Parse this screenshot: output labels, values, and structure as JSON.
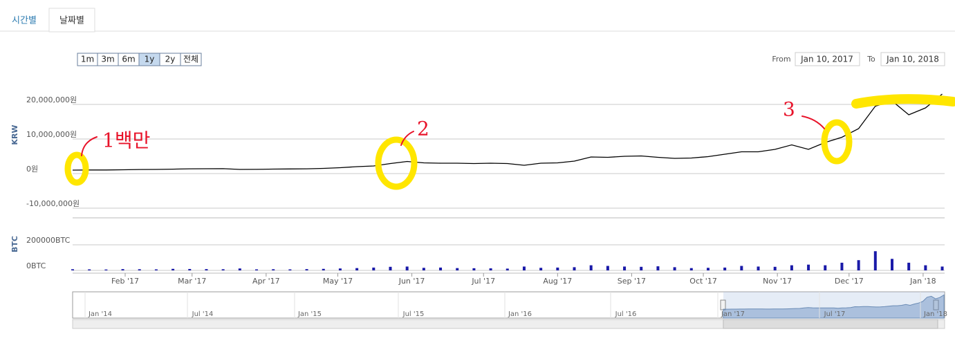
{
  "tabs": [
    "시간별",
    "날짜별"
  ],
  "range_buttons": [
    "1m",
    "3m",
    "6m",
    "1y",
    "2y",
    "전체"
  ],
  "selected_range": "1y",
  "date_range": {
    "from_label": "From",
    "from": "Jan 10, 2017",
    "to_label": "To",
    "to": "Jan 10, 2018"
  },
  "annotations": [
    "1백만",
    "2",
    "3"
  ],
  "navigator": {
    "labels": [
      "Jan '14",
      "Jul '14",
      "Jan '15",
      "Jul '15",
      "Jan '16",
      "Jul '16",
      "Jan '17",
      "Jul '17",
      "Jan '18"
    ]
  },
  "chart_data": [
    {
      "type": "line",
      "y_axis_title": "KRW",
      "color": "#000000",
      "grid": true,
      "xlim": [
        "2017-01-10",
        "2018-01-10"
      ],
      "x": [
        "2017-01-10",
        "2017-01-17",
        "2017-01-24",
        "2017-01-31",
        "2017-02-07",
        "2017-02-14",
        "2017-02-21",
        "2017-02-28",
        "2017-03-07",
        "2017-03-14",
        "2017-03-21",
        "2017-03-28",
        "2017-04-04",
        "2017-04-11",
        "2017-04-18",
        "2017-04-25",
        "2017-05-02",
        "2017-05-09",
        "2017-05-16",
        "2017-05-23",
        "2017-05-30",
        "2017-06-06",
        "2017-06-13",
        "2017-06-20",
        "2017-06-27",
        "2017-07-04",
        "2017-07-11",
        "2017-07-18",
        "2017-07-25",
        "2017-08-01",
        "2017-08-08",
        "2017-08-15",
        "2017-08-22",
        "2017-08-29",
        "2017-09-05",
        "2017-09-12",
        "2017-09-19",
        "2017-09-26",
        "2017-10-03",
        "2017-10-10",
        "2017-10-17",
        "2017-10-24",
        "2017-10-31",
        "2017-11-07",
        "2017-11-14",
        "2017-11-21",
        "2017-11-28",
        "2017-12-05",
        "2017-12-12",
        "2017-12-19",
        "2017-12-26",
        "2018-01-02",
        "2018-01-09"
      ],
      "values": [
        1000000,
        1030000,
        1050000,
        1100000,
        1180000,
        1200000,
        1280000,
        1370000,
        1400000,
        1420000,
        1200000,
        1210000,
        1300000,
        1350000,
        1380000,
        1500000,
        1700000,
        2000000,
        2200000,
        2900000,
        3500000,
        3100000,
        3000000,
        3000000,
        2900000,
        3000000,
        2900000,
        2400000,
        3000000,
        3100000,
        3600000,
        4800000,
        4700000,
        5000000,
        5100000,
        4700000,
        4400000,
        4500000,
        4900000,
        5600000,
        6300000,
        6300000,
        7000000,
        8300000,
        7000000,
        9000000,
        10500000,
        13000000,
        19500000,
        21000000,
        17000000,
        19000000,
        23000000
      ],
      "ylim": [
        -12800000,
        27800000
      ],
      "yticks": [
        {
          "value": -10000000,
          "label": "-10,000,000원"
        },
        {
          "value": 0,
          "label": "0원"
        },
        {
          "value": 10000000,
          "label": "10,000,000원"
        },
        {
          "value": 20000000,
          "label": "20,000,000원"
        }
      ]
    },
    {
      "type": "bar",
      "y_axis_title": "BTC",
      "color": "#1a1aa8",
      "xlim": [
        "2017-01-10",
        "2018-01-10"
      ],
      "x": [
        "2017-01-10",
        "2017-01-17",
        "2017-01-24",
        "2017-01-31",
        "2017-02-07",
        "2017-02-14",
        "2017-02-21",
        "2017-02-28",
        "2017-03-07",
        "2017-03-14",
        "2017-03-21",
        "2017-03-28",
        "2017-04-04",
        "2017-04-11",
        "2017-04-18",
        "2017-04-25",
        "2017-05-02",
        "2017-05-09",
        "2017-05-16",
        "2017-05-23",
        "2017-05-30",
        "2017-06-06",
        "2017-06-13",
        "2017-06-20",
        "2017-06-27",
        "2017-07-04",
        "2017-07-11",
        "2017-07-18",
        "2017-07-25",
        "2017-08-01",
        "2017-08-08",
        "2017-08-15",
        "2017-08-22",
        "2017-08-29",
        "2017-09-05",
        "2017-09-12",
        "2017-09-19",
        "2017-09-26",
        "2017-10-03",
        "2017-10-10",
        "2017-10-17",
        "2017-10-24",
        "2017-10-31",
        "2017-11-07",
        "2017-11-14",
        "2017-11-21",
        "2017-11-28",
        "2017-12-05",
        "2017-12-12",
        "2017-12-19",
        "2017-12-26",
        "2018-01-02",
        "2018-01-09"
      ],
      "values": [
        9000,
        8000,
        7000,
        10000,
        9000,
        8000,
        12000,
        11000,
        10000,
        9000,
        15000,
        8000,
        9000,
        8000,
        10000,
        12000,
        15000,
        18000,
        22000,
        28000,
        30000,
        20000,
        22000,
        18000,
        17000,
        16000,
        14000,
        30000,
        20000,
        22000,
        25000,
        40000,
        35000,
        30000,
        28000,
        32000,
        25000,
        18000,
        20000,
        22000,
        35000,
        30000,
        28000,
        40000,
        45000,
        40000,
        60000,
        80000,
        150000,
        90000,
        60000,
        40000,
        30000
      ],
      "ylim": [
        0,
        400000
      ],
      "yticks": [
        {
          "value": 0,
          "label": "0BTC"
        },
        {
          "value": 200000,
          "label": "200000BTC"
        }
      ],
      "xticks": [
        {
          "value": "2017-02-01",
          "label": "Feb '17"
        },
        {
          "value": "2017-03-01",
          "label": "Mar '17"
        },
        {
          "value": "2017-04-01",
          "label": "Apr '17"
        },
        {
          "value": "2017-05-01",
          "label": "May '17"
        },
        {
          "value": "2017-06-01",
          "label": "Jun '17"
        },
        {
          "value": "2017-07-01",
          "label": "Jul '17"
        },
        {
          "value": "2017-08-01",
          "label": "Aug '17"
        },
        {
          "value": "2017-09-01",
          "label": "Sep '17"
        },
        {
          "value": "2017-10-01",
          "label": "Oct '17"
        },
        {
          "value": "2017-11-01",
          "label": "Nov '17"
        },
        {
          "value": "2017-12-01",
          "label": "Dec '17"
        },
        {
          "value": "2018-01-01",
          "label": "Jan '18"
        }
      ]
    }
  ]
}
